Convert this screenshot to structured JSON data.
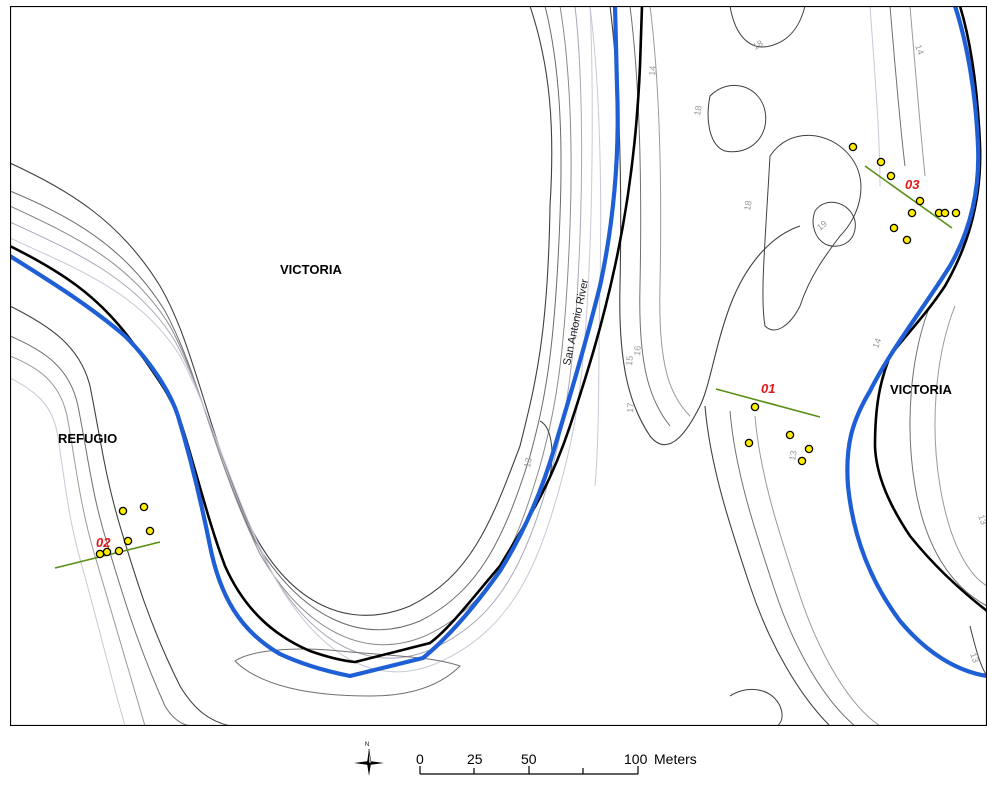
{
  "map": {
    "river_name": "San Antonio River",
    "county_labels": [
      "VICTORIA",
      "REFUGIO",
      "VICTORIA"
    ],
    "cross_sections": [
      "01",
      "02",
      "03"
    ],
    "contour_labels": [
      "18",
      "14",
      "18",
      "18",
      "19",
      "14",
      "13",
      "16",
      "15",
      "17",
      "14",
      "13",
      "13",
      "13"
    ],
    "colors": {
      "river_centerline": "#1f5fd6",
      "county_boundary": "#000000",
      "contours": [
        "#404040",
        "#707070",
        "#9a9a9a",
        "#c8c8d8"
      ],
      "cross_section_line": "#5a8f14",
      "survey_point_fill": "#ffee00",
      "cross_section_label": "#e01818"
    }
  },
  "scale_bar": {
    "ticks": [
      "0",
      "25",
      "50",
      "100"
    ],
    "unit": "Meters"
  },
  "north_arrow": {
    "letter": "N"
  }
}
